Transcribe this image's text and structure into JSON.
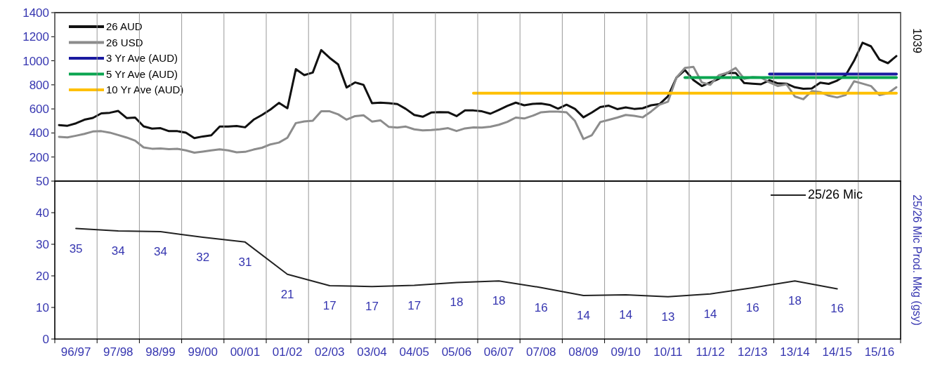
{
  "chart_data": [
    {
      "type": "line",
      "categories": [
        null,
        null,
        null,
        null,
        null,
        null,
        null,
        null,
        null,
        null,
        null,
        null,
        null,
        null,
        null,
        null,
        null,
        null,
        null,
        null,
        null,
        null,
        null,
        null,
        null,
        null,
        null,
        null,
        null,
        null,
        null,
        null,
        null,
        null,
        null,
        null,
        null,
        null,
        null,
        null,
        null,
        null,
        null,
        null,
        null,
        null,
        null,
        null,
        null,
        null,
        null,
        null,
        null,
        null,
        null,
        null,
        null,
        null,
        null,
        null,
        null,
        null,
        null,
        null,
        null,
        null,
        null,
        null,
        null,
        null,
        null,
        null,
        null,
        null,
        null,
        null,
        null,
        null,
        null,
        null,
        null,
        null,
        null,
        null,
        null,
        null,
        null,
        null,
        null,
        null,
        null,
        null,
        null,
        null,
        null,
        null,
        null,
        null,
        null,
        null
      ],
      "ylim": [
        0,
        1400
      ],
      "yticks": [
        200,
        400,
        600,
        800,
        1000,
        1200,
        1400
      ],
      "tick_labels": "y",
      "legend": "top left",
      "annotations": [
        "1039"
      ],
      "series": [
        {
          "name": "26 AUD",
          "color": "#111111",
          "values": [
            465,
            460,
            480,
            510,
            525,
            563,
            568,
            583,
            524,
            528,
            455,
            436,
            440,
            415,
            415,
            402,
            357,
            371,
            381,
            454,
            454,
            458,
            447,
            510,
            550,
            595,
            650,
            605,
            930,
            881,
            902,
            1089,
            1024,
            970,
            778,
            820,
            800,
            648,
            652,
            648,
            640,
            600,
            550,
            535,
            570,
            573,
            572,
            540,
            588,
            587,
            580,
            560,
            592,
            625,
            652,
            630,
            642,
            644,
            633,
            602,
            635,
            600,
            530,
            570,
            615,
            627,
            598,
            612,
            600,
            605,
            630,
            640,
            705,
            860,
            923,
            840,
            790,
            820,
            850,
            900,
            899,
            815,
            810,
            805,
            838,
            812,
            810,
            780,
            767,
            770,
            818,
            808,
            835,
            880,
            1000,
            1150,
            1120,
            1010,
            980,
            1039
          ]
        },
        {
          "name": "26 USD",
          "color": "#8c8c8c",
          "values": [
            368,
            363,
            377,
            392,
            412,
            415,
            403,
            383,
            362,
            336,
            280,
            269,
            271,
            266,
            268,
            255,
            236,
            245,
            255,
            264,
            255,
            239,
            243,
            262,
            277,
            305,
            320,
            360,
            482,
            496,
            502,
            580,
            580,
            555,
            511,
            540,
            547,
            495,
            505,
            450,
            445,
            453,
            430,
            422,
            425,
            430,
            440,
            416,
            438,
            446,
            445,
            452,
            468,
            492,
            528,
            520,
            543,
            572,
            578,
            578,
            572,
            500,
            350,
            382,
            491,
            509,
            528,
            550,
            542,
            530,
            578,
            635,
            660,
            860,
            940,
            950,
            820,
            800,
            880,
            900,
            940,
            850,
            865,
            860,
            820,
            790,
            805,
            703,
            680,
            748,
            740,
            710,
            695,
            715,
            830,
            810,
            790,
            715,
            730,
            780
          ]
        },
        {
          "name": "3 Yr Ave (AUD)",
          "color": "#1a1aa0",
          "values": [
            null,
            null,
            null,
            null,
            null,
            null,
            null,
            null,
            null,
            null,
            null,
            null,
            null,
            null,
            null,
            null,
            null,
            null,
            null,
            null,
            null,
            null,
            null,
            null,
            null,
            null,
            null,
            null,
            null,
            null,
            null,
            null,
            null,
            null,
            null,
            null,
            null,
            null,
            null,
            null,
            null,
            null,
            null,
            null,
            null,
            null,
            null,
            null,
            null,
            null,
            null,
            null,
            null,
            null,
            null,
            null,
            null,
            null,
            null,
            null,
            null,
            null,
            null,
            null,
            null,
            null,
            null,
            null,
            null,
            null,
            null,
            null,
            null,
            null,
            null,
            null,
            null,
            null,
            null,
            null,
            null,
            null,
            null,
            null,
            890,
            890,
            890,
            890,
            890,
            890,
            890,
            890,
            890,
            890,
            890,
            890,
            890,
            890,
            890,
            890
          ]
        },
        {
          "name": "5 Yr Ave (AUD)",
          "color": "#0aa550",
          "values": [
            null,
            null,
            null,
            null,
            null,
            null,
            null,
            null,
            null,
            null,
            null,
            null,
            null,
            null,
            null,
            null,
            null,
            null,
            null,
            null,
            null,
            null,
            null,
            null,
            null,
            null,
            null,
            null,
            null,
            null,
            null,
            null,
            null,
            null,
            null,
            null,
            null,
            null,
            null,
            null,
            null,
            null,
            null,
            null,
            null,
            null,
            null,
            null,
            null,
            null,
            null,
            null,
            null,
            null,
            null,
            null,
            null,
            null,
            null,
            null,
            null,
            null,
            null,
            null,
            null,
            null,
            null,
            null,
            null,
            null,
            null,
            null,
            null,
            null,
            860,
            860,
            860,
            860,
            860,
            860,
            860,
            860,
            860,
            860,
            860,
            860,
            860,
            860,
            860,
            860,
            860,
            860,
            860,
            860,
            860,
            860,
            860,
            860,
            860,
            860
          ]
        },
        {
          "name": "10 Yr Ave (AUD)",
          "color": "#ffc000",
          "values": [
            null,
            null,
            null,
            null,
            null,
            null,
            null,
            null,
            null,
            null,
            null,
            null,
            null,
            null,
            null,
            null,
            null,
            null,
            null,
            null,
            null,
            null,
            null,
            null,
            null,
            null,
            null,
            null,
            null,
            null,
            null,
            null,
            null,
            null,
            null,
            null,
            null,
            null,
            null,
            null,
            null,
            null,
            null,
            null,
            null,
            null,
            null,
            null,
            null,
            730,
            730,
            730,
            730,
            730,
            730,
            730,
            730,
            730,
            730,
            730,
            730,
            730,
            730,
            730,
            730,
            730,
            730,
            730,
            730,
            730,
            730,
            730,
            730,
            730,
            730,
            730,
            730,
            730,
            730,
            730,
            730,
            730,
            730,
            730,
            730,
            730,
            730,
            730,
            730,
            730,
            730,
            730,
            730,
            730,
            730,
            730,
            730,
            730,
            730,
            730
          ]
        }
      ]
    },
    {
      "type": "line",
      "categories": [
        "96/97",
        "97/98",
        "98/99",
        "99/00",
        "00/01",
        "01/02",
        "02/03",
        "03/04",
        "04/05",
        "05/06",
        "06/07",
        "07/08",
        "08/09",
        "09/10",
        "10/11",
        "11/12",
        "12/13",
        "13/14",
        "14/15",
        "15/16"
      ],
      "ylim": [
        0,
        50
      ],
      "yticks": [
        0,
        10,
        20,
        30,
        40,
        50
      ],
      "ylabel": "25/26 Mic Prod. Mkg (gsy)",
      "grid": "x",
      "legend": "top right",
      "series": [
        {
          "name": "25/26 Mic",
          "color": "#222222",
          "values": [
            35,
            34.2,
            34,
            32.2,
            30.7,
            20.5,
            16.9,
            16.6,
            17,
            17.9,
            18.4,
            16.3,
            13.8,
            14,
            13.4,
            14.3,
            16.2,
            18.4,
            15.9,
            null
          ],
          "value_labels": [
            "35",
            "34",
            "34",
            "32",
            "31",
            "21",
            "17",
            "17",
            "17",
            "18",
            "18",
            "16",
            "14",
            "14",
            "13",
            "14",
            "16",
            "18",
            "16",
            null
          ]
        }
      ]
    }
  ]
}
